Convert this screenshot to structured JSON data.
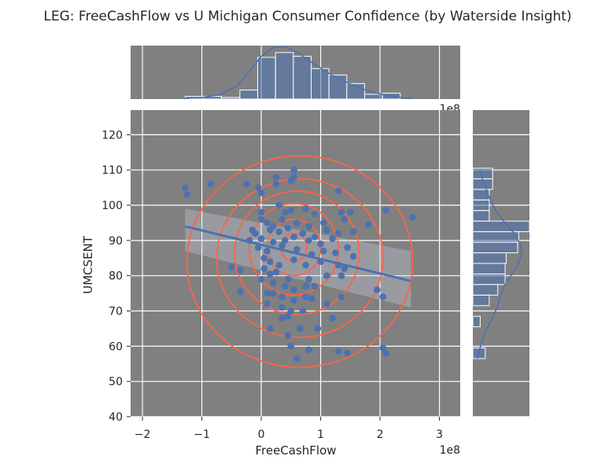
{
  "title": "LEG: FreeCashFlow vs U Michigan Consumer Confidence (by Waterside Insight)",
  "colors": {
    "panel": "#808080",
    "grid": "#ffffff",
    "points": "#4c72b0",
    "contour": "#ff6347",
    "hist": "#4c72b0"
  },
  "chart_data": {
    "type": "scatter",
    "title": "LEG: FreeCashFlow vs U Michigan Consumer Confidence (by Waterside Insight)",
    "xlabel": "FreeCashFlow",
    "ylabel": "UMCSENT",
    "x_scale_label": "1e8",
    "top_scale_label": "1e8",
    "xlim": [
      -2.2,
      3.35
    ],
    "ylim": [
      40,
      127
    ],
    "x_ticks": [
      -2,
      -1,
      0,
      1,
      2,
      3
    ],
    "x_tick_labels": [
      "−2",
      "−1",
      "0",
      "1",
      "2",
      "3"
    ],
    "y_ticks": [
      40,
      50,
      60,
      70,
      80,
      90,
      100,
      110,
      120
    ],
    "y_tick_labels": [
      "40",
      "50",
      "60",
      "70",
      "80",
      "90",
      "100",
      "110",
      "120"
    ],
    "grid": true,
    "points": [
      [
        -1.28,
        105
      ],
      [
        -1.25,
        103
      ],
      [
        -0.85,
        106
      ],
      [
        -0.25,
        106
      ],
      [
        -0.05,
        105
      ],
      [
        0.0,
        103.5
      ],
      [
        0.25,
        108
      ],
      [
        0.25,
        106
      ],
      [
        0.55,
        110
      ],
      [
        0.55,
        108
      ],
      [
        0.5,
        107
      ],
      [
        1.3,
        104
      ],
      [
        0.3,
        100
      ],
      [
        0.4,
        98
      ],
      [
        0.5,
        98.5
      ],
      [
        0.75,
        99
      ],
      [
        0.9,
        97.5
      ],
      [
        1.35,
        98
      ],
      [
        1.5,
        98
      ],
      [
        2.1,
        98.5
      ],
      [
        2.55,
        96.5
      ],
      [
        0.0,
        98
      ],
      [
        0.0,
        96
      ],
      [
        0.1,
        95
      ],
      [
        0.2,
        94
      ],
      [
        0.35,
        96
      ],
      [
        0.6,
        95
      ],
      [
        0.8,
        94
      ],
      [
        1.05,
        95
      ],
      [
        1.4,
        96
      ],
      [
        1.8,
        94.5
      ],
      [
        -0.15,
        93
      ],
      [
        -0.1,
        92
      ],
      [
        0.15,
        93
      ],
      [
        0.3,
        92.5
      ],
      [
        0.45,
        93.5
      ],
      [
        0.7,
        92
      ],
      [
        0.9,
        91
      ],
      [
        1.1,
        93
      ],
      [
        1.3,
        92
      ],
      [
        1.55,
        92.5
      ],
      [
        -0.2,
        90
      ],
      [
        0.0,
        90.5
      ],
      [
        0.2,
        89.5
      ],
      [
        0.4,
        90
      ],
      [
        0.55,
        91
      ],
      [
        0.8,
        90
      ],
      [
        1.0,
        89
      ],
      [
        1.2,
        90.5
      ],
      [
        1.45,
        88
      ],
      [
        -0.05,
        88
      ],
      [
        0.1,
        87
      ],
      [
        0.35,
        88.5
      ],
      [
        0.6,
        87.5
      ],
      [
        0.85,
        86
      ],
      [
        1.05,
        87
      ],
      [
        1.25,
        86.5
      ],
      [
        1.55,
        85.5
      ],
      [
        0.05,
        85
      ],
      [
        0.15,
        84
      ],
      [
        0.3,
        83
      ],
      [
        0.55,
        84.5
      ],
      [
        0.75,
        83
      ],
      [
        1.0,
        84
      ],
      [
        1.3,
        83
      ],
      [
        1.4,
        82
      ],
      [
        -0.5,
        82.5
      ],
      [
        -0.35,
        81.5
      ],
      [
        0.05,
        82
      ],
      [
        0.15,
        80.5
      ],
      [
        0.25,
        81
      ],
      [
        0.45,
        79
      ],
      [
        0.8,
        79
      ],
      [
        1.1,
        80
      ],
      [
        1.35,
        80
      ],
      [
        0.0,
        79
      ],
      [
        0.2,
        78
      ],
      [
        0.4,
        77
      ],
      [
        0.55,
        76
      ],
      [
        0.75,
        77
      ],
      [
        0.9,
        77
      ],
      [
        -0.35,
        75.5
      ],
      [
        0.1,
        75
      ],
      [
        0.2,
        75
      ],
      [
        0.35,
        74
      ],
      [
        0.75,
        74
      ],
      [
        0.85,
        73.5
      ],
      [
        0.55,
        73
      ],
      [
        1.35,
        74
      ],
      [
        1.95,
        76
      ],
      [
        2.05,
        74
      ],
      [
        0.1,
        72
      ],
      [
        0.35,
        71
      ],
      [
        0.5,
        70
      ],
      [
        0.7,
        70
      ],
      [
        0.45,
        68.5
      ],
      [
        1.1,
        72
      ],
      [
        1.2,
        68
      ],
      [
        0.15,
        65
      ],
      [
        0.45,
        63
      ],
      [
        0.65,
        65
      ],
      [
        0.95,
        65
      ],
      [
        0.35,
        68
      ],
      [
        0.5,
        60
      ],
      [
        0.8,
        59
      ],
      [
        1.3,
        58.5
      ],
      [
        1.45,
        58
      ],
      [
        0.6,
        56.5
      ],
      [
        2.05,
        59.5
      ],
      [
        2.1,
        58
      ]
    ],
    "regression": {
      "x0": -1.28,
      "y0": 94,
      "x1": 2.52,
      "y1": 78.5
    },
    "ci_band": [
      [
        -1.28,
        99
      ],
      [
        2.52,
        87
      ],
      [
        2.52,
        71
      ],
      [
        -1.28,
        87
      ]
    ],
    "top_hist": {
      "edges": [
        -1.28,
        -0.97,
        -0.67,
        -0.36,
        -0.06,
        0.24,
        0.54,
        0.84,
        1.14,
        1.44,
        1.74,
        2.04,
        2.34
      ],
      "heights": [
        0.05,
        0.05,
        0.03,
        0.17,
        0.78,
        0.87,
        0.8,
        0.57,
        0.45,
        0.29,
        0.09,
        0.11
      ]
    },
    "top_kde_x": [
      -1.3,
      -1.0,
      -0.7,
      -0.4,
      -0.2,
      0.0,
      0.2,
      0.4,
      0.6,
      0.8,
      1.0,
      1.2,
      1.5,
      1.8,
      2.1,
      2.4,
      2.55
    ],
    "top_kde_y": [
      0.01,
      0.03,
      0.08,
      0.25,
      0.52,
      0.8,
      0.96,
      0.98,
      0.88,
      0.72,
      0.58,
      0.44,
      0.28,
      0.15,
      0.07,
      0.02,
      0.01
    ],
    "right_hist": {
      "edges": [
        56.5,
        59.5,
        62.5,
        65.5,
        68.5,
        71.5,
        74.5,
        77.5,
        80.5,
        83.5,
        86.5,
        89.5,
        92.5,
        95.5,
        98.5,
        101.5,
        104.5,
        107.5,
        110.5
      ],
      "widths": [
        0.22,
        0.0,
        0.0,
        0.13,
        0.0,
        0.29,
        0.44,
        0.57,
        0.57,
        0.59,
        0.79,
        0.81,
        1.0,
        0.29,
        0.29,
        0.29,
        0.35,
        0.35
      ]
    },
    "right_kde_y": [
      56.5,
      59,
      62,
      65,
      68,
      71,
      74,
      77,
      80,
      83,
      86,
      89,
      92,
      95,
      98,
      101,
      104,
      107,
      110
    ],
    "right_kde_x": [
      0.08,
      0.12,
      0.17,
      0.25,
      0.34,
      0.43,
      0.48,
      0.55,
      0.67,
      0.79,
      0.86,
      0.84,
      0.73,
      0.57,
      0.42,
      0.32,
      0.25,
      0.18,
      0.12
    ]
  }
}
